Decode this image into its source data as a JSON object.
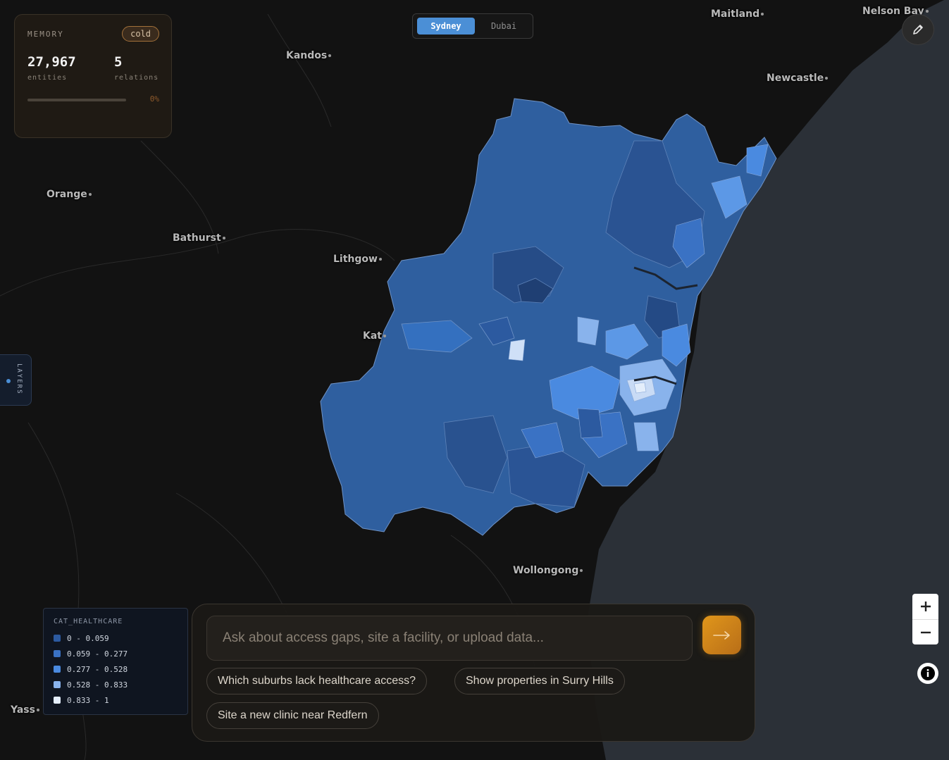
{
  "map": {
    "city_labels": [
      "Maitland",
      "Nelson Bay",
      "Kandos",
      "Newcastle",
      "Orange",
      "Bathurst",
      "Lithgow",
      "Kat",
      "Wollongong",
      "Yass"
    ]
  },
  "memory": {
    "title": "MEMORY",
    "status": "cold",
    "entities_value": "27,967",
    "entities_label": "entities",
    "relations_value": "5",
    "relations_label": "relations",
    "progress_percent": 0,
    "progress_text": "0%"
  },
  "city_toggle": {
    "options": [
      "Sydney",
      "Dubai"
    ],
    "selected": "Sydney"
  },
  "layers": {
    "label": "LAYERS"
  },
  "legend": {
    "title": "CAT_HEALTHCARE",
    "items": [
      {
        "label": "0 - 0.059",
        "color": "#2c5aa0"
      },
      {
        "label": "0.059 - 0.277",
        "color": "#3a72c4"
      },
      {
        "label": "0.277 - 0.528",
        "color": "#4a8ae0"
      },
      {
        "label": "0.528 - 0.833",
        "color": "#89b3ec"
      },
      {
        "label": "0.833 - 1",
        "color": "#e4eefb"
      }
    ]
  },
  "chat": {
    "placeholder": "Ask about access gaps, site a facility, or upload data...",
    "suggestions": [
      "Which suburbs lack healthcare access?",
      "Show properties in Surry Hills",
      "Site a new clinic near Redfern"
    ]
  },
  "colors": {
    "accent": "#e0961b",
    "toggle_active": "#4b8fd6",
    "region_base": "#2e5d9e",
    "ocean": "#2a2f36"
  }
}
